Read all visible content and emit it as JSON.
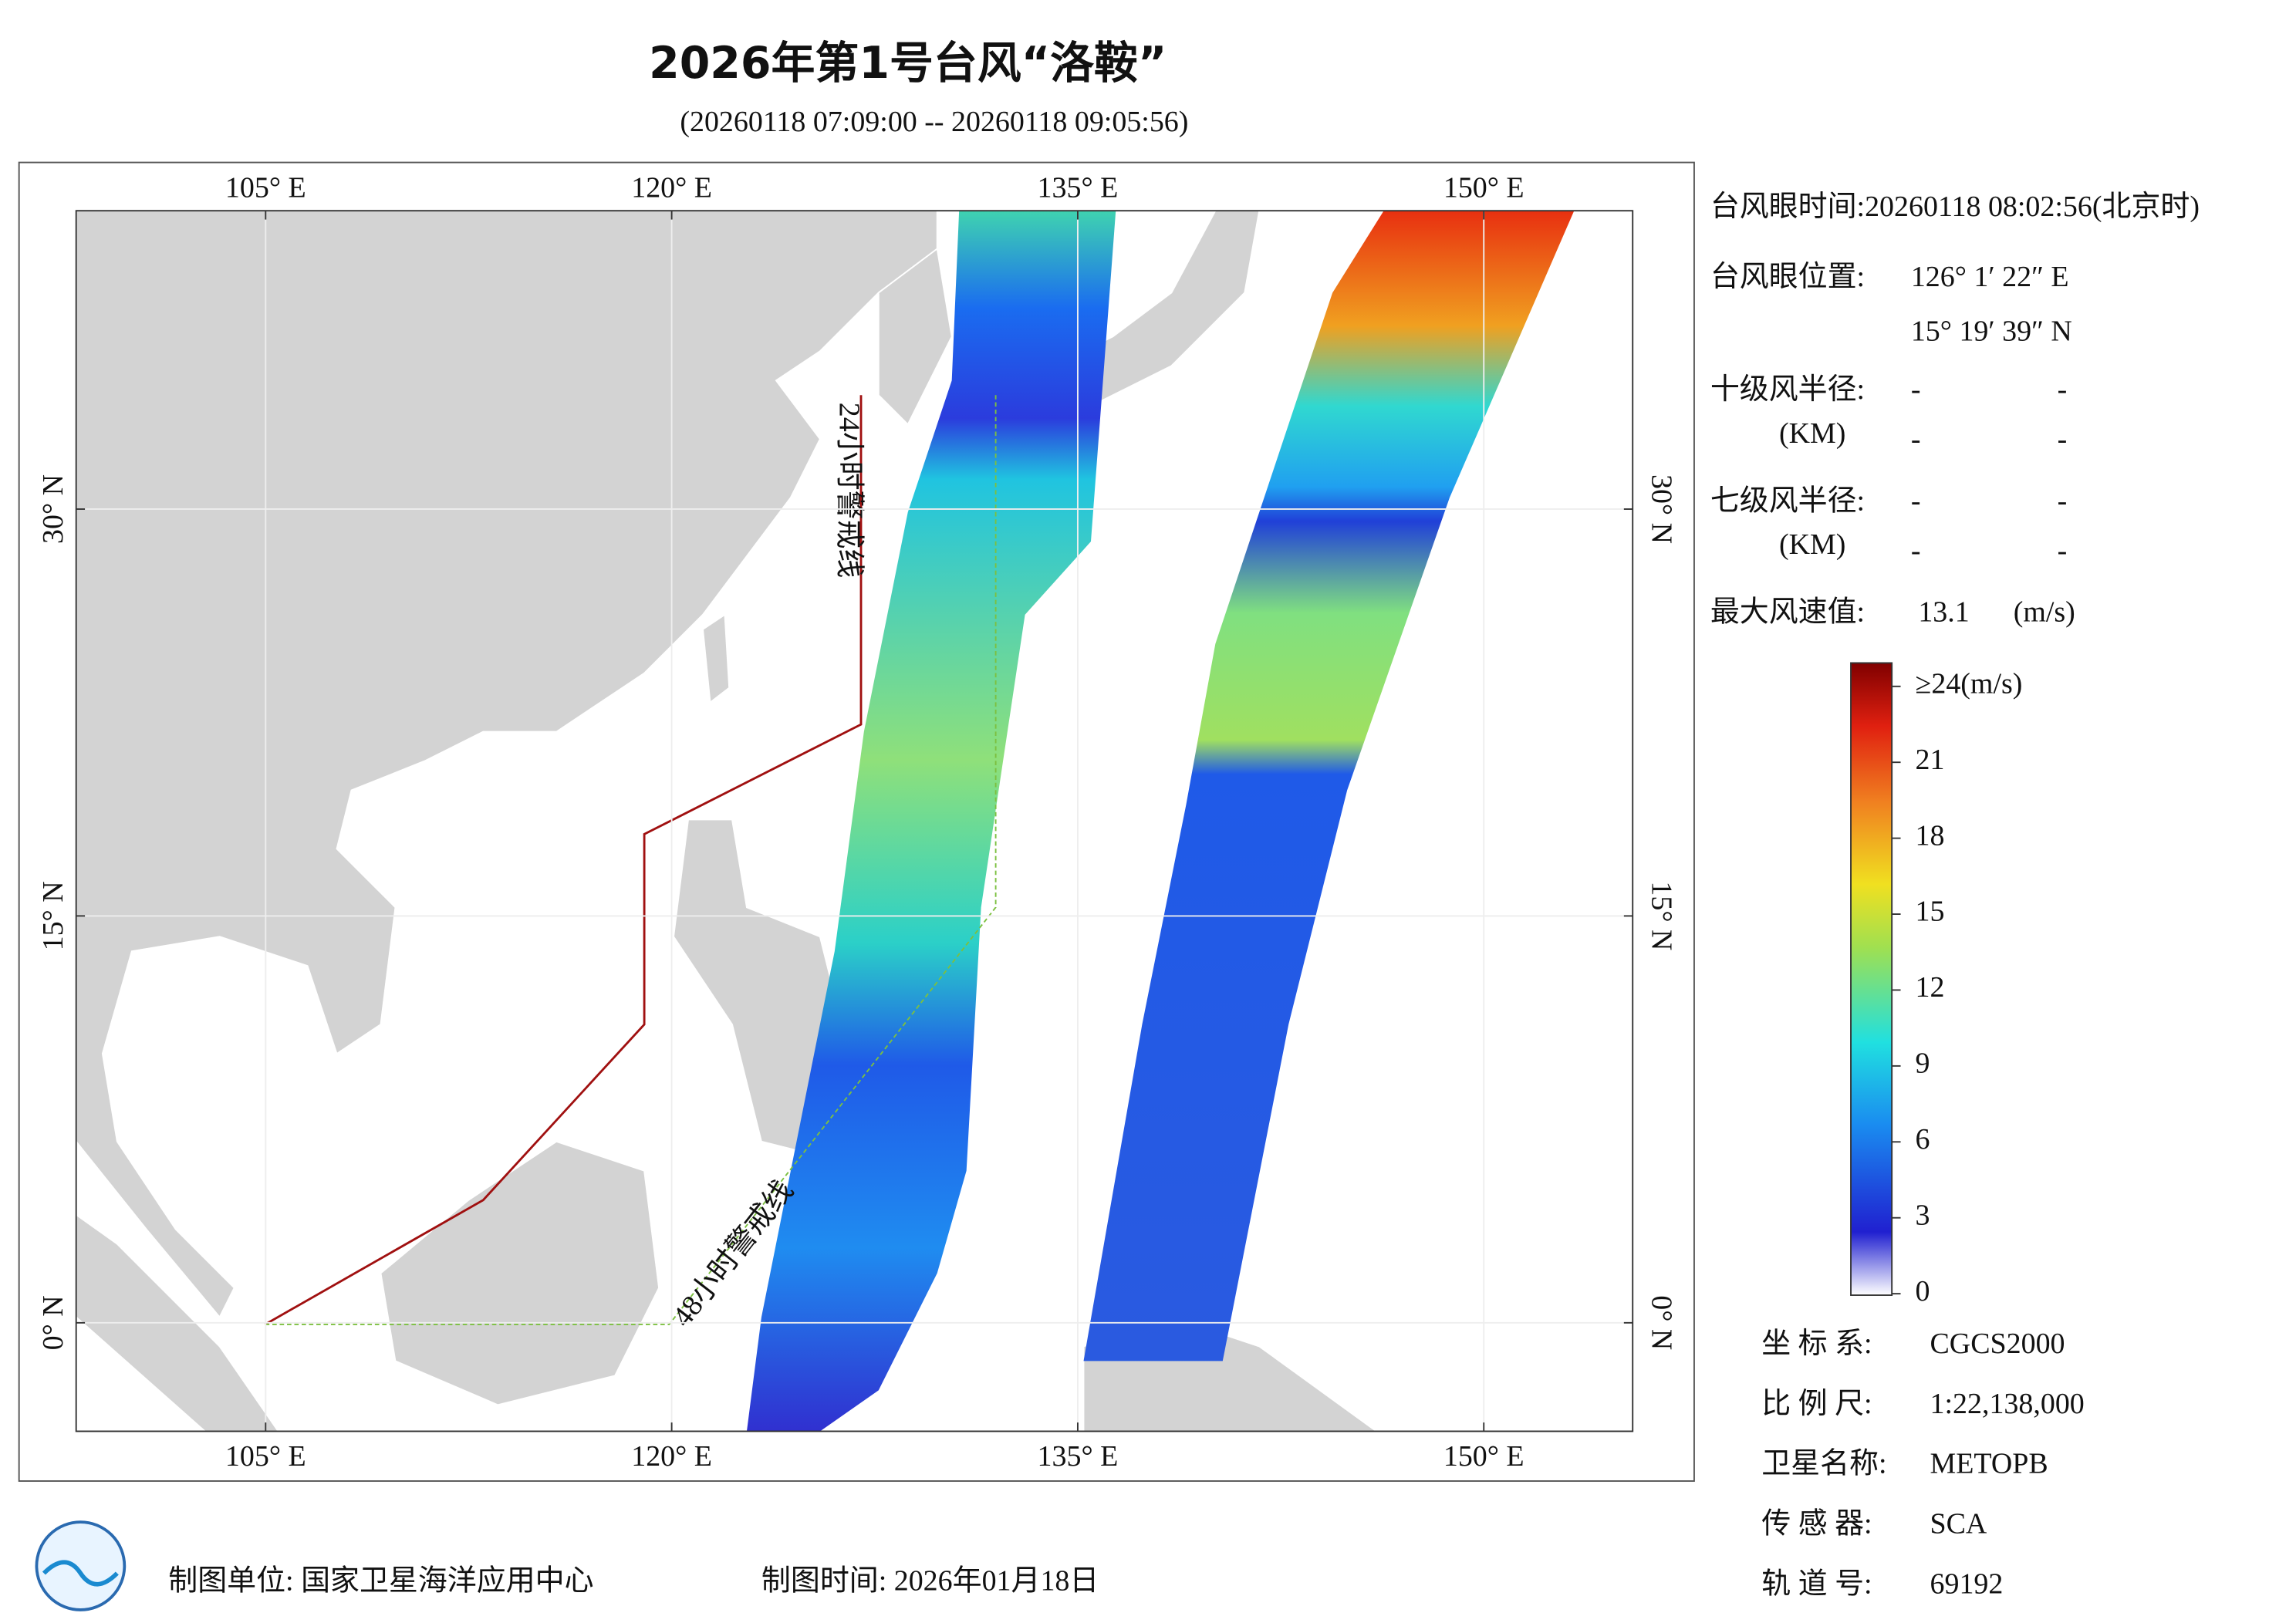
{
  "header": {
    "title": "2026年第1号台风“洛鞍”",
    "subtitle": "(20260118 07:09:00 -- 20260118 09:05:56)"
  },
  "map": {
    "lonlim": [
      98,
      155.5
    ],
    "latlim": [
      -4,
      41
    ],
    "lon_ticks": [
      {
        "value": 105,
        "label": "105° E"
      },
      {
        "value": 120,
        "label": "120° E"
      },
      {
        "value": 135,
        "label": "135° E"
      },
      {
        "value": 150,
        "label": "150° E"
      }
    ],
    "lat_ticks": [
      {
        "value": 0,
        "label": "0° N"
      },
      {
        "value": 15,
        "label": "15° N"
      },
      {
        "value": 30,
        "label": "30° N"
      }
    ],
    "warning_24h": "24小时警戒线",
    "warning_48h": "48小时警戒线"
  },
  "info": {
    "eye_time": "台风眼时间:20260118 08:02:56(北京时)",
    "eye_position_label": "台风眼位置:",
    "eye_lon": "126° 1′ 22″ E",
    "eye_lat": "15° 19′ 39″ N",
    "r10_label": "十级风半径:",
    "r7_label": "七级风半径:",
    "km": "(KM)",
    "dash": "-",
    "max_wind_label": "最大风速值:",
    "max_wind": 13.1,
    "unit": "(m/s)"
  },
  "colorbar": {
    "lim": [
      0,
      24
    ],
    "ticks": [
      0,
      3,
      6,
      9,
      12,
      15,
      18,
      21,
      {
        "value": 24,
        "label": "≥24(m/s)"
      }
    ]
  },
  "meta": [
    [
      "坐 标 系:",
      "CGCS2000"
    ],
    [
      "比 例 尺:",
      "1:22,138,000"
    ],
    [
      "卫星名称:",
      "METOPB"
    ],
    [
      "传 感 器:",
      "SCA"
    ],
    [
      "轨 道 号:",
      "69192"
    ]
  ],
  "footer": {
    "org": "制图单位: 国家卫星海洋应用中心",
    "date": "制图时间: 2026年01月18日"
  }
}
